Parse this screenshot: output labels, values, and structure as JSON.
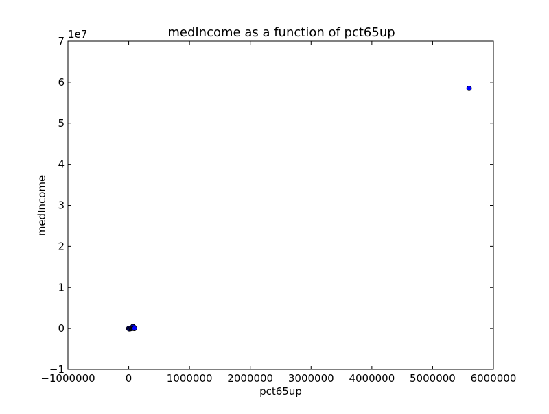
{
  "chart_data": {
    "type": "scatter",
    "title": "medIncome as a function of pct65up",
    "xlabel": "pct65up",
    "ylabel": "medIncome",
    "xlim": [
      -1000000,
      6000000
    ],
    "ylim": [
      -10000000,
      70000000
    ],
    "x_ticks": [
      -1000000,
      0,
      1000000,
      2000000,
      3000000,
      4000000,
      5000000,
      6000000
    ],
    "x_tick_labels": [
      "−1000000",
      "0",
      "1000000",
      "2000000",
      "3000000",
      "4000000",
      "5000000",
      "6000000"
    ],
    "y_ticks": [
      -10000000,
      0,
      10000000,
      20000000,
      30000000,
      40000000,
      50000000,
      60000000,
      70000000
    ],
    "y_tick_labels": [
      "−1",
      "0",
      "1",
      "2",
      "3",
      "4",
      "5",
      "6",
      "7"
    ],
    "y_offset_label": "1e7",
    "grid": false,
    "marker_color": "#0000ff",
    "marker_edge_color": "#000000",
    "points": [
      {
        "x": 5600000,
        "y": 58500000
      },
      {
        "x": 0,
        "y": 0
      },
      {
        "x": 10000,
        "y": -100000
      },
      {
        "x": 20000,
        "y": 50000
      },
      {
        "x": 30000,
        "y": -50000
      },
      {
        "x": 40000,
        "y": 100000
      },
      {
        "x": 50000,
        "y": 0
      },
      {
        "x": 60000,
        "y": 150000
      },
      {
        "x": 65000,
        "y": 300000
      },
      {
        "x": 70000,
        "y": 500000
      },
      {
        "x": 75000,
        "y": 200000
      },
      {
        "x": 80000,
        "y": 350000
      },
      {
        "x": 85000,
        "y": 100000
      },
      {
        "x": 90000,
        "y": 0
      },
      {
        "x": 95000,
        "y": 50000
      }
    ]
  }
}
